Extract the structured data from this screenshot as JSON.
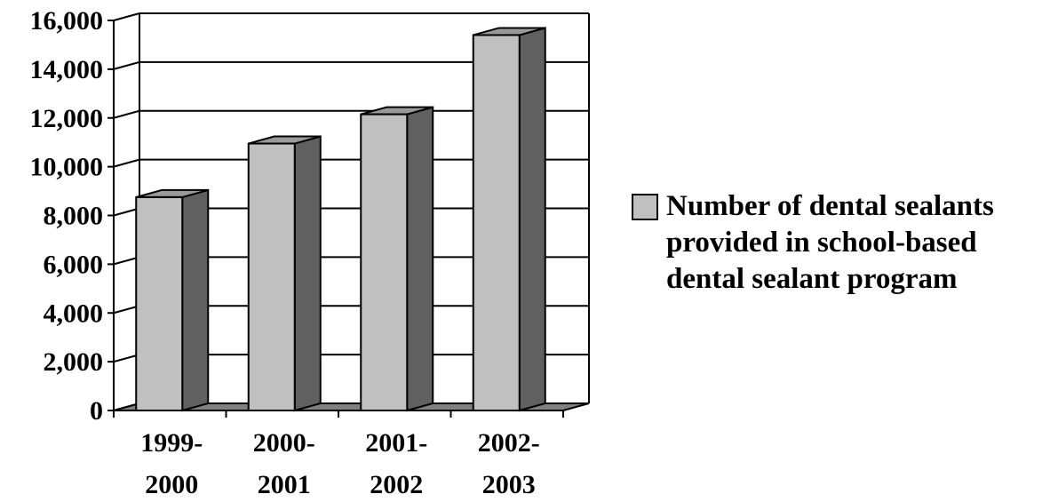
{
  "chart_data": {
    "type": "bar",
    "categories": [
      [
        "1999-",
        "2000"
      ],
      [
        "2000-",
        "2001"
      ],
      [
        "2001-",
        "2002"
      ],
      [
        "2002-",
        "2003"
      ]
    ],
    "series": [
      {
        "name": "Number of dental sealants provided in school-based dental sealant program",
        "values": [
          8750,
          10950,
          12150,
          15400
        ]
      }
    ],
    "y_ticks": [
      "0",
      "2,000",
      "4,000",
      "6,000",
      "8,000",
      "10,000",
      "12,000",
      "14,000",
      "16,000"
    ],
    "ylim": [
      0,
      16000
    ],
    "grid": true,
    "three_d": true,
    "legend_position": "right",
    "legend_lines": [
      "Number of dental sealants",
      "provided in school-based",
      "dental sealant program"
    ],
    "colors": {
      "bar_front": "#c0c0c0",
      "bar_side": "#606060",
      "bar_top": "#9a9a9a",
      "floor": "#808080",
      "gridline": "#000000"
    }
  }
}
